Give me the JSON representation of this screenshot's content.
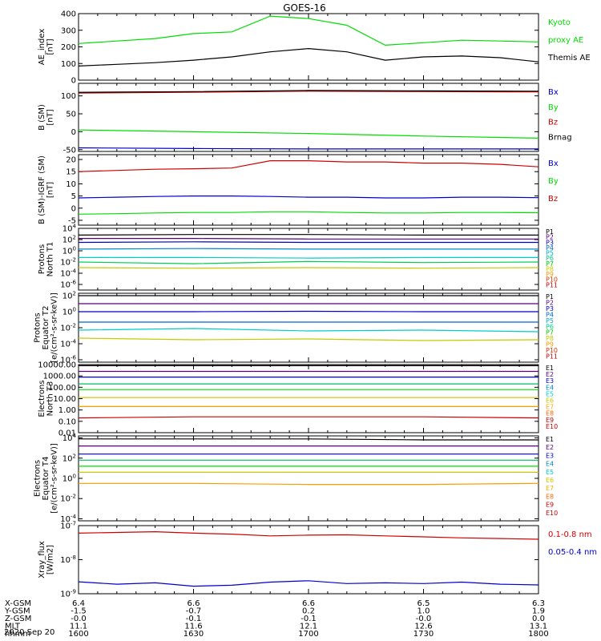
{
  "title": "GOES-16",
  "date_label": "2020 Sep 20",
  "ephemeris": {
    "labels": [
      "X-GSM",
      "Y-GSM",
      "Z-GSM",
      "MLT",
      "hhmm"
    ],
    "ticks": [
      {
        "x": "6.4",
        "y": "-1.5",
        "z": "-0.0",
        "mlt": "11.1",
        "hhmm": "1600"
      },
      {
        "x": "6.6",
        "y": "-0.7",
        "z": "-0.1",
        "mlt": "11.6",
        "hhmm": "1630"
      },
      {
        "x": "6.6",
        "y": "0.2",
        "z": "-0.1",
        "mlt": "12.1",
        "hhmm": "1700"
      },
      {
        "x": "6.5",
        "y": "1.0",
        "z": "-0.0",
        "mlt": "12.6",
        "hhmm": "1730"
      },
      {
        "x": "6.3",
        "y": "1.9",
        "z": "0.0",
        "mlt": "13.1",
        "hhmm": "1800"
      }
    ]
  },
  "chart_data": [
    {
      "type": "line",
      "ylabel": [
        "AE_index",
        "[nT]"
      ],
      "ylim": [
        0,
        400
      ],
      "yticks": [
        {
          "v": 0,
          "t": "0"
        },
        {
          "v": 100,
          "t": "100"
        },
        {
          "v": 200,
          "t": "200"
        },
        {
          "v": 300,
          "t": "300"
        },
        {
          "v": 400,
          "t": "400"
        }
      ],
      "x": [
        0,
        10,
        20,
        30,
        40,
        50,
        60,
        70,
        80,
        90,
        100,
        110,
        120
      ],
      "series": [
        {
          "name": "Kyoto proxy AE",
          "color": "#00dd00",
          "values": [
            220,
            235,
            250,
            280,
            290,
            385,
            370,
            330,
            210,
            225,
            240,
            235,
            230
          ]
        },
        {
          "name": "Themis AE",
          "color": "#000000",
          "values": [
            85,
            95,
            105,
            120,
            140,
            170,
            190,
            170,
            120,
            140,
            145,
            135,
            110
          ]
        }
      ],
      "legend": [
        {
          "text": "Kyoto",
          "color": "#00dd00"
        },
        {
          "text": "proxy AE",
          "color": "#00dd00"
        },
        {
          "text": "Themis AE",
          "color": "#000000"
        }
      ]
    },
    {
      "type": "line",
      "ylabel": [
        "B (SM)",
        "[nT]"
      ],
      "ylim": [
        -55,
        135
      ],
      "yticks": [
        {
          "v": -50,
          "t": "-50"
        },
        {
          "v": 0,
          "t": "0"
        },
        {
          "v": 50,
          "t": "50"
        },
        {
          "v": 100,
          "t": "100"
        }
      ],
      "x": [
        0,
        30,
        60,
        90,
        120
      ],
      "series": [
        {
          "name": "Bz",
          "color": "#d00000",
          "values": [
            108,
            110,
            113,
            112,
            111
          ]
        },
        {
          "name": "Brnag",
          "color": "#000000",
          "values": [
            110,
            112,
            115,
            114,
            113
          ]
        },
        {
          "name": "By",
          "color": "#00dd00",
          "values": [
            5,
            0,
            -5,
            -12,
            -18
          ]
        },
        {
          "name": "Bx",
          "color": "#0000cc",
          "values": [
            -45,
            -47,
            -48,
            -48,
            -48
          ]
        }
      ],
      "legend": [
        {
          "text": "Bx",
          "color": "#0000cc"
        },
        {
          "text": "By",
          "color": "#00dd00"
        },
        {
          "text": "Bz",
          "color": "#d00000"
        },
        {
          "text": "Brnag",
          "color": "#000000"
        }
      ]
    },
    {
      "type": "line",
      "ylabel": [
        "B (SM)-IGRF (SM)",
        "[nT]"
      ],
      "ylim": [
        -7,
        22
      ],
      "yticks": [
        {
          "v": -5,
          "t": "-5"
        },
        {
          "v": 0,
          "t": "0"
        },
        {
          "v": 5,
          "t": "5"
        },
        {
          "v": 10,
          "t": "10"
        },
        {
          "v": 15,
          "t": "15"
        },
        {
          "v": 20,
          "t": "20"
        }
      ],
      "x": [
        0,
        10,
        20,
        30,
        40,
        50,
        60,
        70,
        80,
        90,
        100,
        110,
        120
      ],
      "series": [
        {
          "name": "Bz",
          "color": "#d00000",
          "values": [
            15,
            15.5,
            16,
            16.2,
            16.5,
            19.5,
            19.5,
            19,
            19,
            18.5,
            18.5,
            18,
            17
          ]
        },
        {
          "name": "Bx",
          "color": "#0000cc",
          "values": [
            4.2,
            4.5,
            4.8,
            5,
            5,
            4.8,
            4.5,
            4.5,
            4.2,
            4.2,
            4.5,
            4.5,
            4.3
          ]
        },
        {
          "name": "By",
          "color": "#00dd00",
          "values": [
            -2.5,
            -2.3,
            -2,
            -1.8,
            -1.8,
            -1.5,
            -1.5,
            -1.8,
            -2,
            -2,
            -1.8,
            -1.8,
            -1.9
          ]
        }
      ],
      "legend": [
        {
          "text": "Bx",
          "color": "#0000cc"
        },
        {
          "text": "By",
          "color": "#00dd00"
        },
        {
          "text": "Bz",
          "color": "#d00000"
        }
      ]
    },
    {
      "type": "line",
      "log": true,
      "ylabel": [
        "Protons",
        "North T1"
      ],
      "ylim": [
        -7,
        4
      ],
      "yticks": [
        {
          "v": 4,
          "t": "10^4"
        },
        {
          "v": 2,
          "t": "10^2"
        },
        {
          "v": 0,
          "t": "10^0"
        },
        {
          "v": -2,
          "t": "10^-2"
        },
        {
          "v": -4,
          "t": "10^-4"
        },
        {
          "v": -6,
          "t": "10^-6"
        }
      ],
      "x": [
        0,
        30,
        60,
        90,
        120
      ],
      "series": [
        {
          "name": "P1",
          "color": "#000000",
          "values": [
            2.8,
            2.9,
            2.9,
            2.8,
            2.8
          ]
        },
        {
          "name": "P2",
          "color": "#5a007a",
          "values": [
            2.2,
            2.2,
            2.1,
            2.1,
            2.1
          ]
        },
        {
          "name": "P3",
          "color": "#0000cc",
          "values": [
            1.5,
            1.6,
            1.5,
            1.5,
            1.5
          ]
        },
        {
          "name": "P4",
          "color": "#0088cc",
          "values": [
            0.3,
            0.4,
            0.3,
            0.3,
            0.3
          ]
        },
        {
          "name": "P5",
          "color": "#00cccc",
          "values": [
            -1.2,
            -1.2,
            -1.3,
            -1.2,
            -1.2
          ]
        },
        {
          "name": "P6",
          "color": "#00cc55",
          "values": [
            -2,
            -2.3,
            -1.9,
            -2.1,
            -2
          ]
        },
        {
          "name": "P8",
          "color": "#c8c800",
          "values": [
            -3,
            -3.1,
            -3,
            -3.1,
            -3
          ]
        }
      ],
      "legend": [
        {
          "text": "P1",
          "color": "#000000"
        },
        {
          "text": "P2",
          "color": "#5a007a"
        },
        {
          "text": "P3",
          "color": "#0000cc"
        },
        {
          "text": "P4",
          "color": "#0066cc"
        },
        {
          "text": "P5",
          "color": "#00aacc"
        },
        {
          "text": "P6",
          "color": "#00cc88"
        },
        {
          "text": "P7",
          "color": "#00cc00"
        },
        {
          "text": "P8",
          "color": "#c8c800"
        },
        {
          "text": "P9",
          "color": "#ff9900"
        },
        {
          "text": "P10",
          "color": "#dd3300"
        },
        {
          "text": "P11",
          "color": "#cc0000"
        }
      ]
    },
    {
      "type": "line",
      "log": true,
      "ylabel": [
        "Protons",
        "Equator T2",
        "[e/(cm²-s-sr-keV)]"
      ],
      "ylim": [
        -6.3,
        2.3
      ],
      "yticks": [
        {
          "v": 2,
          "t": "10^2"
        },
        {
          "v": 0,
          "t": "10^0"
        },
        {
          "v": -2,
          "t": "10^-2"
        },
        {
          "v": -4,
          "t": "10^-4"
        },
        {
          "v": -6,
          "t": "10^-6"
        }
      ],
      "x": [
        0,
        30,
        60,
        90,
        120
      ],
      "series": [
        {
          "name": "P1",
          "color": "#000000",
          "values": [
            2.0,
            2.0,
            2.0,
            2.0,
            2.0
          ]
        },
        {
          "name": "P2",
          "color": "#5a007a",
          "values": [
            1.0,
            1.0,
            1.0,
            1.0,
            1.0
          ]
        },
        {
          "name": "P3",
          "color": "#0000cc",
          "values": [
            0,
            0,
            0.05,
            0,
            0
          ]
        },
        {
          "name": "P4",
          "color": "#0066cc",
          "values": [
            -1.3,
            -1.3,
            -1.3,
            -1.3,
            -1.3
          ]
        },
        {
          "name": "P5",
          "color": "#00cccc",
          "values": [
            -2.3,
            -2.1,
            -2.4,
            -2.3,
            -2.5
          ]
        },
        {
          "name": "P8",
          "color": "#c8c800",
          "values": [
            -3.3,
            -3.5,
            -3.4,
            -3.6,
            -3.5
          ]
        }
      ],
      "legend": [
        {
          "text": "P1",
          "color": "#000000"
        },
        {
          "text": "P2",
          "color": "#5a007a"
        },
        {
          "text": "P3",
          "color": "#0000cc"
        },
        {
          "text": "P4",
          "color": "#0066cc"
        },
        {
          "text": "P5",
          "color": "#00aacc"
        },
        {
          "text": "P6",
          "color": "#00cc88"
        },
        {
          "text": "P7",
          "color": "#00cc00"
        },
        {
          "text": "P8",
          "color": "#c8c800"
        },
        {
          "text": "P9",
          "color": "#ff9900"
        },
        {
          "text": "P10",
          "color": "#dd3300"
        },
        {
          "text": "P11",
          "color": "#cc0000"
        }
      ]
    },
    {
      "type": "line",
      "log": true,
      "ylabel": [
        "Electrons",
        "North T3"
      ],
      "ylim": [
        -2,
        4
      ],
      "yticks": [
        {
          "v": 4,
          "t": "10000.00"
        },
        {
          "v": 3,
          "t": "1000.00"
        },
        {
          "v": 2,
          "t": "100.00"
        },
        {
          "v": 1,
          "t": "10.00"
        },
        {
          "v": 0,
          "t": "1.00"
        },
        {
          "v": -1,
          "t": "0.10"
        },
        {
          "v": -2,
          "t": "0.01"
        }
      ],
      "x": [
        0,
        30,
        60,
        90,
        120
      ],
      "series": [
        {
          "name": "E1",
          "color": "#000000",
          "values": [
            3.9,
            3.9,
            3.9,
            3.9,
            3.9
          ]
        },
        {
          "name": "E2",
          "color": "#5a007a",
          "values": [
            3.4,
            3.4,
            3.4,
            3.4,
            3.4
          ]
        },
        {
          "name": "E3",
          "color": "#0000cc",
          "values": [
            2.9,
            2.9,
            2.9,
            2.9,
            2.9
          ]
        },
        {
          "name": "E4",
          "color": "#00bb66",
          "values": [
            2.3,
            2.3,
            2.3,
            2.3,
            2.3
          ]
        },
        {
          "name": "E5",
          "color": "#00dd00",
          "values": [
            1.8,
            1.8,
            1.8,
            1.8,
            1.8
          ]
        },
        {
          "name": "E6",
          "color": "#c8c800",
          "values": [
            1.1,
            1.1,
            1.1,
            1.1,
            1.1
          ]
        },
        {
          "name": "E7",
          "color": "#ff9900",
          "values": [
            0.3,
            0.3,
            0.3,
            0.3,
            0.3
          ]
        },
        {
          "name": "E9",
          "color": "#cc0000",
          "values": [
            -0.7,
            -0.6,
            -0.6,
            -0.6,
            -0.7
          ]
        }
      ],
      "legend": [
        {
          "text": "E1",
          "color": "#000000"
        },
        {
          "text": "E2",
          "color": "#5a007a"
        },
        {
          "text": "E3",
          "color": "#0000cc"
        },
        {
          "text": "E4",
          "color": "#0088cc"
        },
        {
          "text": "E5",
          "color": "#00cccc"
        },
        {
          "text": "E6",
          "color": "#c8c800"
        },
        {
          "text": "E7",
          "color": "#ffaa00"
        },
        {
          "text": "E8",
          "color": "#ff6600"
        },
        {
          "text": "E9",
          "color": "#cc0000"
        },
        {
          "text": "E10",
          "color": "#cc0000"
        }
      ]
    },
    {
      "type": "line",
      "log": true,
      "ylabel": [
        "Electrons",
        "Equator T4",
        "[e/(cm²-s-sr-keV)]"
      ],
      "ylim": [
        -4.2,
        4.2
      ],
      "yticks": [
        {
          "v": 4,
          "t": "10^4"
        },
        {
          "v": 2,
          "t": "10^2"
        },
        {
          "v": 0,
          "t": "10^0"
        },
        {
          "v": -2,
          "t": "10^-2"
        },
        {
          "v": -4,
          "t": "10^-4"
        }
      ],
      "x": [
        0,
        30,
        60,
        90,
        120
      ],
      "series": [
        {
          "name": "E1",
          "color": "#000000",
          "values": [
            3.9,
            3.9,
            3.9,
            3.8,
            3.8
          ]
        },
        {
          "name": "E2",
          "color": "#5a007a",
          "values": [
            3.2,
            3.2,
            3.2,
            3.2,
            3.2
          ]
        },
        {
          "name": "E3",
          "color": "#0000cc",
          "values": [
            2.4,
            2.4,
            2.4,
            2.4,
            2.4
          ]
        },
        {
          "name": "E4",
          "color": "#00bb66",
          "values": [
            1.8,
            1.8,
            1.8,
            1.8,
            1.8
          ]
        },
        {
          "name": "E5",
          "color": "#00dd00",
          "values": [
            1.2,
            1.2,
            1.2,
            1.2,
            1.2
          ]
        },
        {
          "name": "E6",
          "color": "#c8c800",
          "values": [
            0.6,
            0.6,
            0.6,
            0.6,
            0.6
          ]
        },
        {
          "name": "E7",
          "color": "#ff9900",
          "values": [
            -0.5,
            -0.5,
            -0.6,
            -0.6,
            -0.5
          ]
        }
      ],
      "legend": [
        {
          "text": "E1",
          "color": "#000000"
        },
        {
          "text": "E2",
          "color": "#5a007a"
        },
        {
          "text": "E3",
          "color": "#0000cc"
        },
        {
          "text": "E4",
          "color": "#0088cc"
        },
        {
          "text": "E5",
          "color": "#00cccc"
        },
        {
          "text": "E6",
          "color": "#c8c800"
        },
        {
          "text": "E7",
          "color": "#ffaa00"
        },
        {
          "text": "E8",
          "color": "#ff6600"
        },
        {
          "text": "E9",
          "color": "#cc0000"
        },
        {
          "text": "E10",
          "color": "#cc0000"
        }
      ]
    },
    {
      "type": "line",
      "log": true,
      "ylabel": [
        "Xray_flux",
        "[W/m2]"
      ],
      "ylim": [
        -9,
        -7
      ],
      "yticks": [
        {
          "v": -7,
          "t": "10^-7"
        },
        {
          "v": -8,
          "t": "10^-8"
        },
        {
          "v": -9,
          "t": "10^-9"
        }
      ],
      "x": [
        0,
        10,
        20,
        30,
        40,
        50,
        60,
        70,
        80,
        90,
        100,
        110,
        120
      ],
      "series": [
        {
          "name": "0.1-0.8 nm",
          "color": "#d00000",
          "values": [
            -7.22,
            -7.2,
            -7.18,
            -7.22,
            -7.25,
            -7.3,
            -7.28,
            -7.27,
            -7.3,
            -7.33,
            -7.36,
            -7.38,
            -7.4
          ]
        },
        {
          "name": "0.05-0.4 nm",
          "color": "#0000cc",
          "values": [
            -8.65,
            -8.72,
            -8.68,
            -8.78,
            -8.75,
            -8.66,
            -8.62,
            -8.7,
            -8.68,
            -8.7,
            -8.66,
            -8.72,
            -8.74
          ]
        }
      ],
      "legend": [
        {
          "text": "0.1-0.8 nm",
          "color": "#d00000"
        },
        {
          "text": "0.05-0.4 nm",
          "color": "#0000cc"
        }
      ]
    }
  ]
}
